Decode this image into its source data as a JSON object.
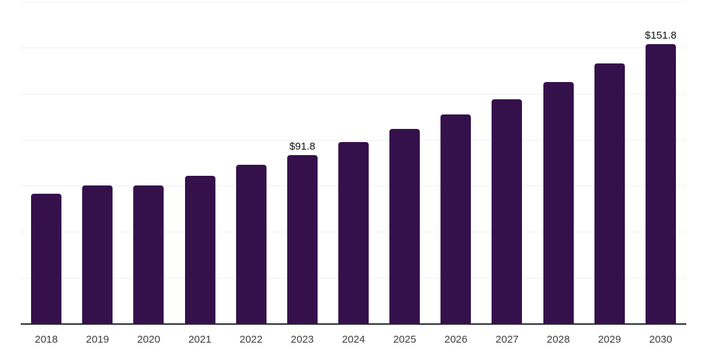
{
  "chart_data": {
    "type": "bar",
    "categories": [
      "2018",
      "2019",
      "2020",
      "2021",
      "2022",
      "2023",
      "2024",
      "2025",
      "2026",
      "2027",
      "2028",
      "2029",
      "2030"
    ],
    "values": [
      70.5,
      75.0,
      75.1,
      80.4,
      86.2,
      91.8,
      98.7,
      106.0,
      113.5,
      121.9,
      131.1,
      141.2,
      151.8
    ],
    "data_labels": [
      "",
      "",
      "",
      "",
      "",
      "$91.8",
      "",
      "",
      "",
      "",
      "",
      "",
      "$151.8"
    ],
    "xlabel": "",
    "ylabel": "",
    "ylim": [
      0,
      175
    ],
    "y_grid_step": 25,
    "grid": "horizontal, no y tick labels",
    "legend_position": "none",
    "bar_color": "#35114c",
    "axis_line_color": "#26262e",
    "grid_color": "#f0f0f0",
    "tick_label_color": "#3d3d3d",
    "data_label_color": "#111111",
    "background_color": "#ffffff"
  }
}
